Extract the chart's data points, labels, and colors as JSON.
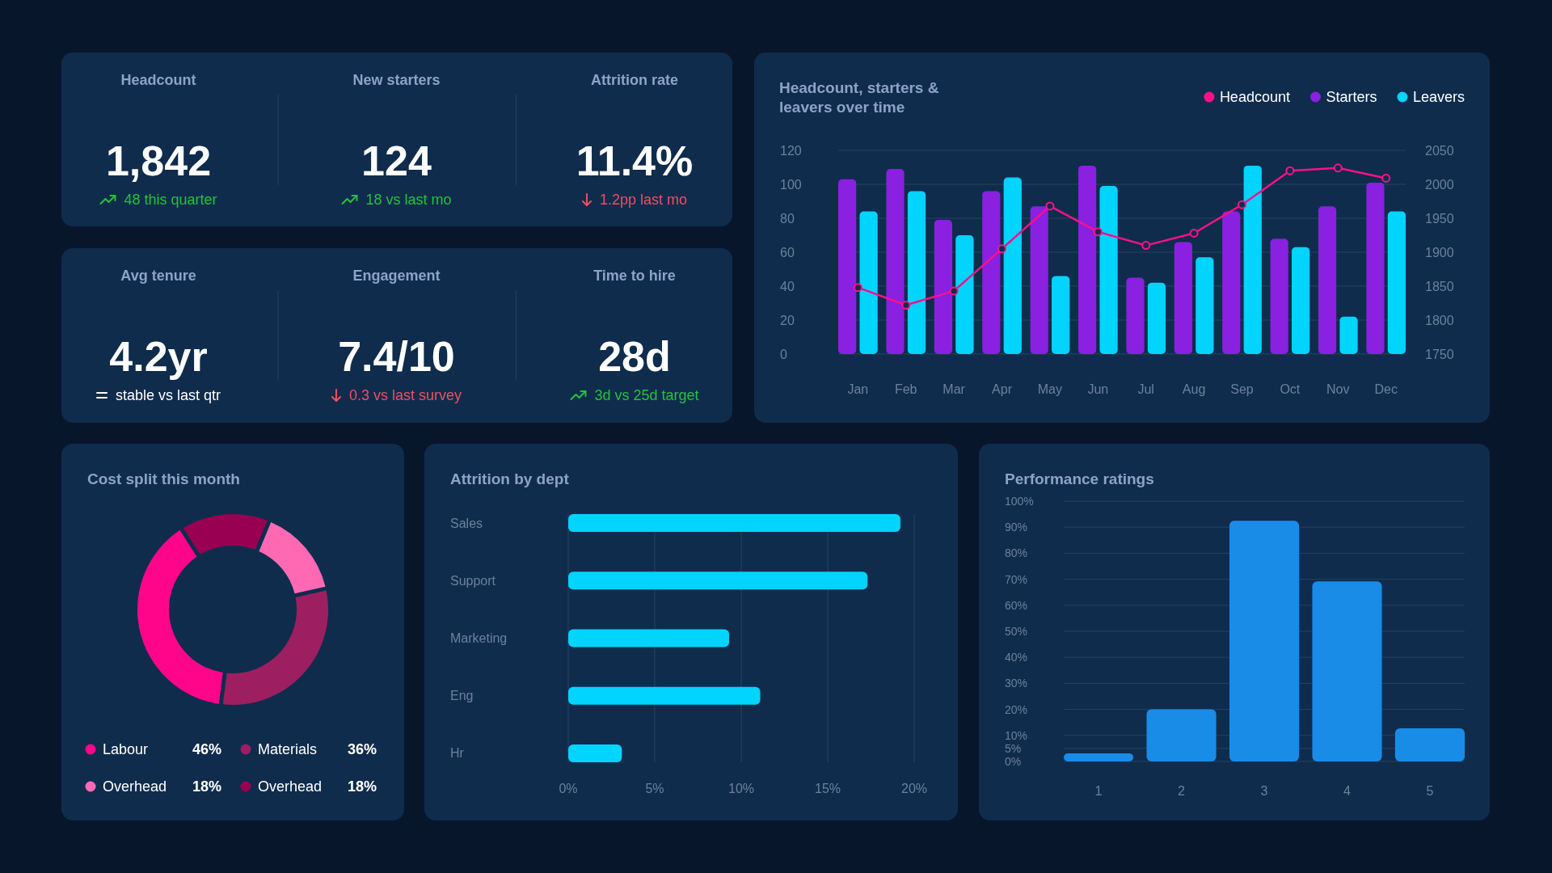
{
  "chart_data": [
    {
      "type": "other",
      "categories": [
        "Headcount",
        "New starters",
        "Attrition rate"
      ],
      "value_labels": [
        "1,842",
        "124",
        "11.4%"
      ],
      "annotations": [
        "48 this quarter",
        "18 vs last mo",
        "1.2pp last mo"
      ]
    },
    {
      "type": "other",
      "categories": [
        "Avg tenure",
        "Engagement",
        "Time to hire"
      ],
      "value_labels": [
        "4.2yr",
        "7.4/10",
        "28d"
      ],
      "annotations": [
        "stable vs last qtr",
        "0.3 vs last survey",
        "3d vs 25d target"
      ]
    },
    {
      "type": "bar",
      "title": "Headcount, starters & leavers over time",
      "categories": [
        "Jan",
        "Feb",
        "Mar",
        "Apr",
        "May",
        "Jun",
        "Jul",
        "Aug",
        "Sep",
        "Oct",
        "Nov",
        "Dec"
      ],
      "series": [
        {
          "name": "Headcount",
          "type": "line",
          "axis": "y2",
          "color": "#ff0f8a",
          "values": [
            1848,
            1822,
            1843,
            1905,
            1968,
            1930,
            1910,
            1928,
            1970,
            2020,
            2024,
            2009
          ]
        },
        {
          "name": "Starters",
          "color": "#8a20e0",
          "values": [
            103,
            109,
            79,
            96,
            87,
            111,
            45,
            66,
            84,
            68,
            87,
            101
          ]
        },
        {
          "name": "Leavers",
          "color": "#00d4ff",
          "values": [
            84,
            96,
            70,
            104,
            46,
            99,
            42,
            57,
            111,
            63,
            22,
            84
          ]
        }
      ],
      "ylim": [
        0,
        120
      ],
      "yticks": [
        0,
        20,
        40,
        60,
        80,
        100,
        120
      ],
      "y2lim": [
        1750,
        2050
      ],
      "y2ticks": [
        1750,
        1800,
        1850,
        1900,
        1950,
        2000,
        2050
      ],
      "grid": "y",
      "legend": "top right",
      "marker": "circle"
    },
    {
      "type": "donut",
      "title": "Cost split this month",
      "categories": [
        "Labour",
        "Materials",
        "Overhead",
        "Overhead"
      ],
      "values": [
        46,
        36,
        18,
        18
      ],
      "colors": [
        "#ff0589",
        "#9e1e62",
        "#ff69b4",
        "#990052"
      ],
      "value_labels": [
        "46%",
        "36%",
        "18%",
        "18%"
      ],
      "legend": "bottom"
    },
    {
      "type": "bar",
      "orientation": "horizontal",
      "title": "Attrition by dept",
      "categories": [
        "Sales",
        "Support",
        "Marketing",
        "Eng",
        "Hr"
      ],
      "values": [
        19.2,
        17.3,
        9.3,
        11.1,
        3.1
      ],
      "color": "#00d4ff",
      "xlim": [
        0,
        20
      ],
      "xticks": [
        {
          "value": 0,
          "label": "0%"
        },
        {
          "value": 5,
          "label": "5%"
        },
        {
          "value": 10,
          "label": "10%"
        },
        {
          "value": 15,
          "label": "15%"
        },
        {
          "value": 20,
          "label": "20%"
        }
      ],
      "grid": "x"
    },
    {
      "type": "bar",
      "title": "Performance ratings",
      "categories": [
        "1",
        "2",
        "3",
        "4",
        "5"
      ],
      "values": [
        3.1,
        20,
        92.5,
        69.2,
        12.7
      ],
      "color": "#198ce8",
      "ylim": [
        0,
        100
      ],
      "yticks": [
        {
          "value": 0,
          "label": "0%"
        },
        {
          "value": 5,
          "label": "5%"
        },
        {
          "value": 10,
          "label": "10%"
        },
        {
          "value": 20,
          "label": "20%"
        },
        {
          "value": 30,
          "label": "30%"
        },
        {
          "value": 40,
          "label": "40%"
        },
        {
          "value": 50,
          "label": "50%"
        },
        {
          "value": 60,
          "label": "60%"
        },
        {
          "value": 70,
          "label": "70%"
        },
        {
          "value": 80,
          "label": "80%"
        },
        {
          "value": 90,
          "label": "90%"
        },
        {
          "value": 100,
          "label": "100%"
        }
      ],
      "grid": "y"
    }
  ]
}
